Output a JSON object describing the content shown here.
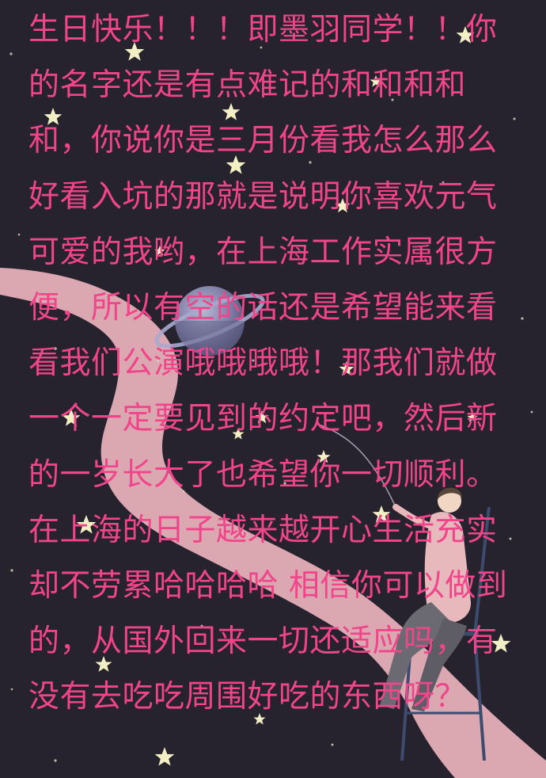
{
  "message": {
    "lines": [
      "生日快乐！！！即墨羽同学！！你",
      "的名字还是有点难记的和和和和",
      "和，你说你是三月份看我怎么那么",
      "好看入坑的那就是说明你喜欢元气",
      "可爱的我哟，在上海工作实属很方",
      "便，所以有空的话还是希望能来看",
      "看我们公演哦哦哦哦！那我们就做",
      "一个一定要见到的约定吧，然后新",
      "的一岁长大了也希望你一切顺利。",
      "在上海的日子越来越开心生活充实",
      "却不劳累哈哈哈哈 相信你可以做到",
      "的，从国外回来一切还适应吗，有",
      "没有去吃吃周围好吃的东西呀？"
    ]
  },
  "colors": {
    "background": "#26222e",
    "text": "#f0458a",
    "ribbon": "#e9b3bb",
    "star": "#f3efc4",
    "planet": "#8d8cb0"
  },
  "illustration": {
    "background_icon": "night-sky-background",
    "ribbon_icon": "pink-milky-way-ribbon",
    "planet_icon": "ringed-planet-icon",
    "figure_icon": "person-on-chair-illustration",
    "star_icon": "star-icon"
  }
}
